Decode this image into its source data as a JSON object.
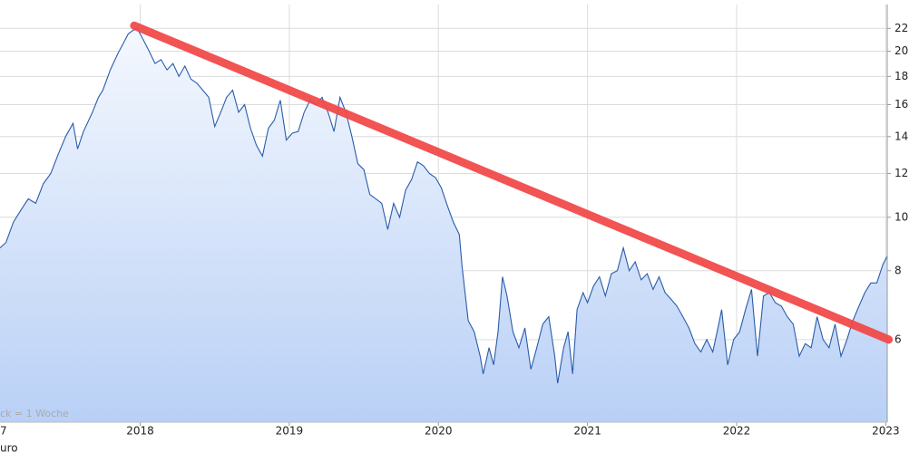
{
  "chart_data": {
    "type": "line",
    "log_scale": true,
    "grid": true,
    "note": "ck = 1 Woche",
    "unit_label": "uro",
    "fill": true,
    "xlim": [
      2017.06,
      2023.01
    ],
    "xticks": [
      {
        "value": 2017,
        "label": "7"
      },
      2018,
      2019,
      2020,
      2021,
      2022,
      2023
    ],
    "ylim": [
      4.25,
      24.3
    ],
    "yticks": [
      6,
      8,
      10,
      12,
      14,
      16,
      18,
      20,
      22
    ],
    "x": [
      2017.06,
      2017.1,
      2017.15,
      2017.2,
      2017.25,
      2017.3,
      2017.35,
      2017.4,
      2017.45,
      2017.5,
      2017.55,
      2017.58,
      2017.62,
      2017.68,
      2017.72,
      2017.75,
      2017.8,
      2017.85,
      2017.88,
      2017.92,
      2017.95,
      2017.98,
      2018.02,
      2018.06,
      2018.1,
      2018.14,
      2018.18,
      2018.22,
      2018.26,
      2018.3,
      2018.34,
      2018.38,
      2018.42,
      2018.46,
      2018.5,
      2018.54,
      2018.58,
      2018.62,
      2018.66,
      2018.7,
      2018.74,
      2018.78,
      2018.82,
      2018.86,
      2018.9,
      2018.94,
      2018.98,
      2019.02,
      2019.06,
      2019.1,
      2019.14,
      2019.18,
      2019.22,
      2019.26,
      2019.3,
      2019.34,
      2019.38,
      2019.42,
      2019.46,
      2019.5,
      2019.54,
      2019.58,
      2019.62,
      2019.66,
      2019.7,
      2019.74,
      2019.78,
      2019.82,
      2019.86,
      2019.9,
      2019.94,
      2019.98,
      2020.02,
      2020.06,
      2020.1,
      2020.14,
      2020.16,
      2020.2,
      2020.24,
      2020.28,
      2020.3,
      2020.34,
      2020.37,
      2020.4,
      2020.43,
      2020.46,
      2020.5,
      2020.54,
      2020.58,
      2020.62,
      2020.66,
      2020.7,
      2020.74,
      2020.78,
      2020.8,
      2020.84,
      2020.87,
      2020.9,
      2020.93,
      2020.97,
      2021.0,
      2021.04,
      2021.08,
      2021.12,
      2021.16,
      2021.2,
      2021.24,
      2021.28,
      2021.32,
      2021.36,
      2021.4,
      2021.44,
      2021.48,
      2021.52,
      2021.56,
      2021.6,
      2021.64,
      2021.68,
      2021.72,
      2021.76,
      2021.8,
      2021.84,
      2021.88,
      2021.9,
      2021.94,
      2021.98,
      2022.02,
      2022.06,
      2022.1,
      2022.14,
      2022.18,
      2022.22,
      2022.26,
      2022.3,
      2022.34,
      2022.38,
      2022.42,
      2022.46,
      2022.5,
      2022.54,
      2022.58,
      2022.62,
      2022.66,
      2022.7,
      2022.74,
      2022.78,
      2022.82,
      2022.86,
      2022.9,
      2022.94,
      2022.98,
      2023.01
    ],
    "series": [
      {
        "color": "#2a5caa",
        "values": [
          8.8,
          9.0,
          9.8,
          10.3,
          10.8,
          10.6,
          11.5,
          12.0,
          13.0,
          14.0,
          14.8,
          13.3,
          14.3,
          15.5,
          16.5,
          17.0,
          18.5,
          19.8,
          20.5,
          21.5,
          21.8,
          22.0,
          21.0,
          20.0,
          19.0,
          19.3,
          18.5,
          19.0,
          18.0,
          18.8,
          17.8,
          17.5,
          17.0,
          16.5,
          14.6,
          15.5,
          16.5,
          17.0,
          15.5,
          16.0,
          14.5,
          13.5,
          12.9,
          14.5,
          15.0,
          16.3,
          13.8,
          14.2,
          14.3,
          15.5,
          16.3,
          16.0,
          16.5,
          15.5,
          14.3,
          16.5,
          15.5,
          14.0,
          12.5,
          12.2,
          11.0,
          10.8,
          10.6,
          9.5,
          10.6,
          10.0,
          11.2,
          11.7,
          12.6,
          12.4,
          12.0,
          11.8,
          11.3,
          10.5,
          9.8,
          9.3,
          8.1,
          6.5,
          6.2,
          5.6,
          5.2,
          5.8,
          5.4,
          6.2,
          7.8,
          7.2,
          6.2,
          5.8,
          6.3,
          5.3,
          5.8,
          6.4,
          6.6,
          5.6,
          5.0,
          5.8,
          6.2,
          5.2,
          6.8,
          7.3,
          7.0,
          7.5,
          7.8,
          7.2,
          7.9,
          8.0,
          8.8,
          8.0,
          8.3,
          7.7,
          7.9,
          7.4,
          7.8,
          7.3,
          7.1,
          6.9,
          6.6,
          6.3,
          5.9,
          5.7,
          6.0,
          5.7,
          6.4,
          6.8,
          5.4,
          6.0,
          6.2,
          6.8,
          7.4,
          5.6,
          7.2,
          7.3,
          7.0,
          6.9,
          6.6,
          6.4,
          5.6,
          5.9,
          5.8,
          6.6,
          6.0,
          5.8,
          6.4,
          5.6,
          6.0,
          6.5,
          6.9,
          7.3,
          7.6,
          7.6,
          8.2,
          8.5
        ]
      }
    ],
    "trend_line": {
      "color": "#f24a4a",
      "x": [
        2017.96,
        2023.02
      ],
      "y": [
        22.25,
        6.0
      ]
    }
  }
}
